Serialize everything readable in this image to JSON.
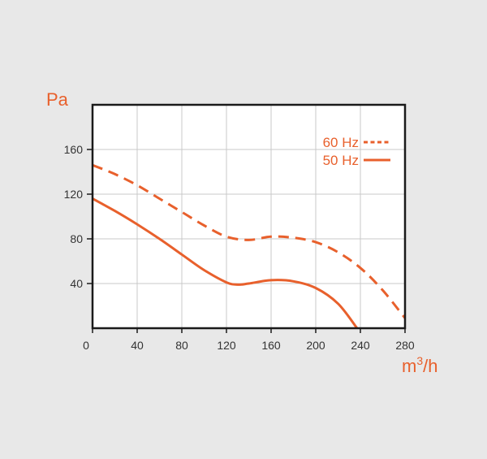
{
  "colors": {
    "background": "#e8e8e8",
    "plot_background": "#ffffff",
    "grid": "#c8c8c8",
    "frame": "#1a1a1a",
    "accent": "#e8602c",
    "tick_text": "#333333"
  },
  "chart_data": {
    "type": "line",
    "title": "",
    "ylabel": "Pa",
    "xlabel_base": "m",
    "xlabel_sup": "3",
    "xlabel_tail": "/h",
    "xlim": [
      0,
      280
    ],
    "ylim": [
      0,
      200
    ],
    "x_ticks": [
      0,
      40,
      80,
      120,
      160,
      200,
      240,
      280
    ],
    "x_tick_labels": [
      "0",
      "40",
      "80",
      "120",
      "160",
      "200",
      "240",
      "280"
    ],
    "y_ticks": [
      40,
      80,
      120,
      160
    ],
    "y_tick_labels": [
      "40",
      "80",
      "120",
      "160"
    ],
    "grid": true,
    "legend_position": "top-right",
    "series": [
      {
        "name": "60 Hz",
        "style": "dashed",
        "color": "#e8602c",
        "x": [
          0,
          20,
          40,
          60,
          80,
          100,
          120,
          140,
          160,
          180,
          200,
          220,
          240,
          260,
          280
        ],
        "y": [
          146,
          138,
          128,
          116,
          104,
          92,
          82,
          79,
          82,
          81,
          77,
          68,
          54,
          34,
          9
        ]
      },
      {
        "name": "50 Hz",
        "style": "solid",
        "color": "#e8602c",
        "x": [
          0,
          20,
          40,
          60,
          80,
          100,
          120,
          130,
          140,
          160,
          180,
          200,
          220,
          237
        ],
        "y": [
          116,
          105,
          93,
          80,
          66,
          52,
          41,
          39,
          40,
          43,
          42,
          36,
          22,
          0
        ]
      }
    ]
  }
}
